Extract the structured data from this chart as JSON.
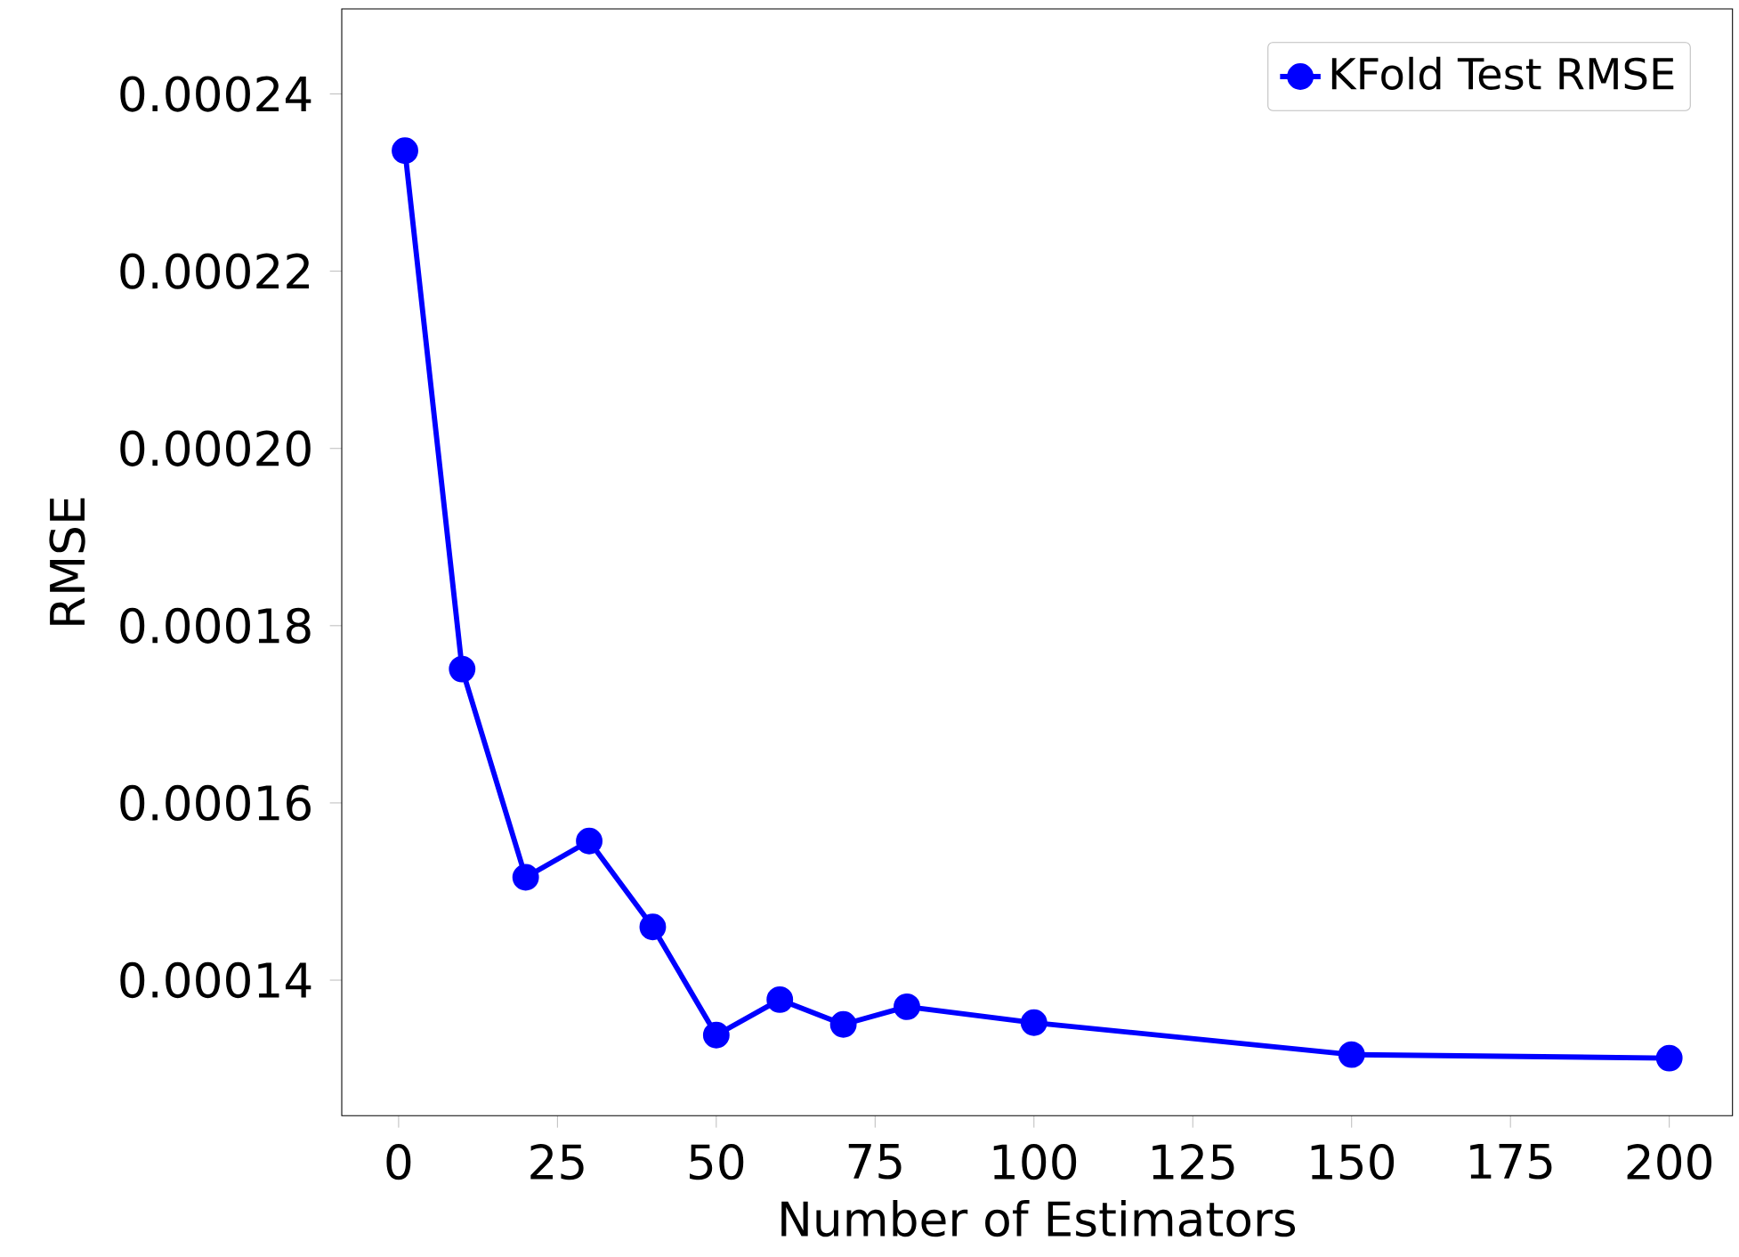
{
  "chart_data": {
    "type": "line",
    "xlabel": "Number of Estimators",
    "ylabel": "RMSE",
    "x": [
      1,
      10,
      20,
      30,
      40,
      50,
      60,
      70,
      80,
      100,
      150,
      200
    ],
    "series": [
      {
        "name": "KFold Test RMSE",
        "color": "#0000ff",
        "values": [
          0.0002336,
          0.0001751,
          0.0001516,
          0.0001557,
          0.000146,
          0.0001338,
          0.0001378,
          0.000135,
          0.000137,
          0.0001352,
          0.0001316,
          0.0001312
        ]
      }
    ],
    "xlim": [
      -8.95,
      209.95
    ],
    "ylim": [
      0.0001247,
      0.0002496
    ],
    "xticks": [
      0,
      25,
      50,
      75,
      100,
      125,
      150,
      175,
      200
    ],
    "yticks": [
      0.00014,
      0.00016,
      0.00018,
      {
        "value": 0.0002,
        "label": "0.00020"
      },
      0.00022,
      0.00024
    ],
    "legend": "top right",
    "marker": "circle",
    "line_style": "solid",
    "grid": false
  }
}
